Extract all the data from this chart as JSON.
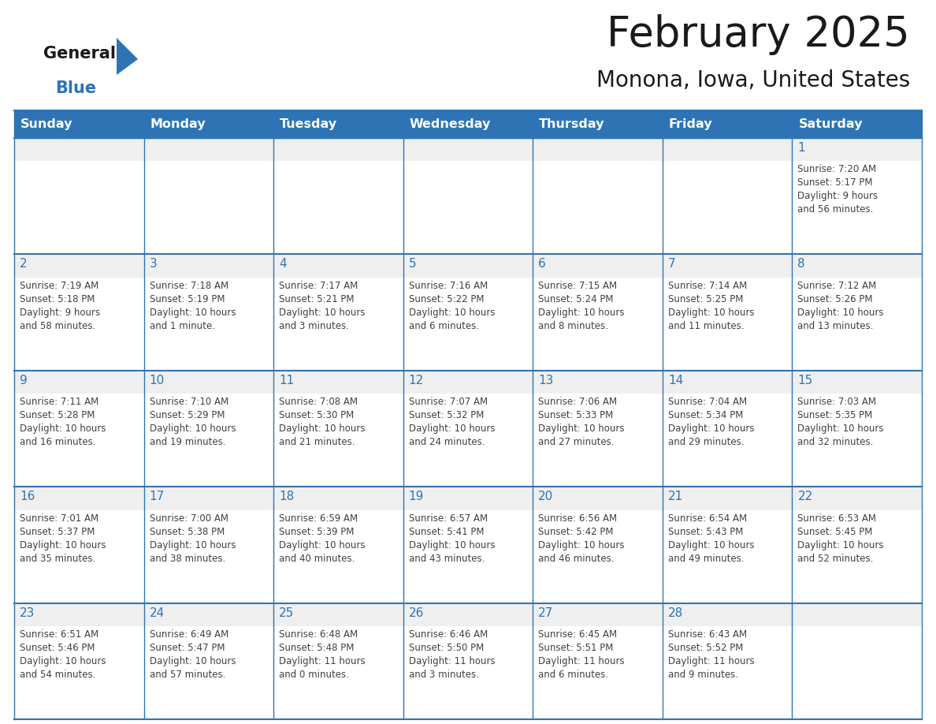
{
  "title": "February 2025",
  "subtitle": "Monona, Iowa, United States",
  "header_bg": "#2E74B5",
  "header_text_color": "#FFFFFF",
  "days_of_week": [
    "Sunday",
    "Monday",
    "Tuesday",
    "Wednesday",
    "Thursday",
    "Friday",
    "Saturday"
  ],
  "cell_top_bg": "#EFEFEF",
  "cell_body_bg": "#FFFFFF",
  "cell_border_color": "#2E74B5",
  "day_number_color": "#2E74B5",
  "info_text_color": "#404040",
  "logo_general_color": "#1a1a1a",
  "logo_blue_color": "#2E74B5",
  "logo_triangle_color": "#2E74B5",
  "title_color": "#1a1a1a",
  "calendar_data": [
    [
      null,
      null,
      null,
      null,
      null,
      null,
      {
        "day": 1,
        "sunrise": "7:20 AM",
        "sunset": "5:17 PM",
        "daylight": "9 hours\nand 56 minutes."
      }
    ],
    [
      {
        "day": 2,
        "sunrise": "7:19 AM",
        "sunset": "5:18 PM",
        "daylight": "9 hours\nand 58 minutes."
      },
      {
        "day": 3,
        "sunrise": "7:18 AM",
        "sunset": "5:19 PM",
        "daylight": "10 hours\nand 1 minute."
      },
      {
        "day": 4,
        "sunrise": "7:17 AM",
        "sunset": "5:21 PM",
        "daylight": "10 hours\nand 3 minutes."
      },
      {
        "day": 5,
        "sunrise": "7:16 AM",
        "sunset": "5:22 PM",
        "daylight": "10 hours\nand 6 minutes."
      },
      {
        "day": 6,
        "sunrise": "7:15 AM",
        "sunset": "5:24 PM",
        "daylight": "10 hours\nand 8 minutes."
      },
      {
        "day": 7,
        "sunrise": "7:14 AM",
        "sunset": "5:25 PM",
        "daylight": "10 hours\nand 11 minutes."
      },
      {
        "day": 8,
        "sunrise": "7:12 AM",
        "sunset": "5:26 PM",
        "daylight": "10 hours\nand 13 minutes."
      }
    ],
    [
      {
        "day": 9,
        "sunrise": "7:11 AM",
        "sunset": "5:28 PM",
        "daylight": "10 hours\nand 16 minutes."
      },
      {
        "day": 10,
        "sunrise": "7:10 AM",
        "sunset": "5:29 PM",
        "daylight": "10 hours\nand 19 minutes."
      },
      {
        "day": 11,
        "sunrise": "7:08 AM",
        "sunset": "5:30 PM",
        "daylight": "10 hours\nand 21 minutes."
      },
      {
        "day": 12,
        "sunrise": "7:07 AM",
        "sunset": "5:32 PM",
        "daylight": "10 hours\nand 24 minutes."
      },
      {
        "day": 13,
        "sunrise": "7:06 AM",
        "sunset": "5:33 PM",
        "daylight": "10 hours\nand 27 minutes."
      },
      {
        "day": 14,
        "sunrise": "7:04 AM",
        "sunset": "5:34 PM",
        "daylight": "10 hours\nand 29 minutes."
      },
      {
        "day": 15,
        "sunrise": "7:03 AM",
        "sunset": "5:35 PM",
        "daylight": "10 hours\nand 32 minutes."
      }
    ],
    [
      {
        "day": 16,
        "sunrise": "7:01 AM",
        "sunset": "5:37 PM",
        "daylight": "10 hours\nand 35 minutes."
      },
      {
        "day": 17,
        "sunrise": "7:00 AM",
        "sunset": "5:38 PM",
        "daylight": "10 hours\nand 38 minutes."
      },
      {
        "day": 18,
        "sunrise": "6:59 AM",
        "sunset": "5:39 PM",
        "daylight": "10 hours\nand 40 minutes."
      },
      {
        "day": 19,
        "sunrise": "6:57 AM",
        "sunset": "5:41 PM",
        "daylight": "10 hours\nand 43 minutes."
      },
      {
        "day": 20,
        "sunrise": "6:56 AM",
        "sunset": "5:42 PM",
        "daylight": "10 hours\nand 46 minutes."
      },
      {
        "day": 21,
        "sunrise": "6:54 AM",
        "sunset": "5:43 PM",
        "daylight": "10 hours\nand 49 minutes."
      },
      {
        "day": 22,
        "sunrise": "6:53 AM",
        "sunset": "5:45 PM",
        "daylight": "10 hours\nand 52 minutes."
      }
    ],
    [
      {
        "day": 23,
        "sunrise": "6:51 AM",
        "sunset": "5:46 PM",
        "daylight": "10 hours\nand 54 minutes."
      },
      {
        "day": 24,
        "sunrise": "6:49 AM",
        "sunset": "5:47 PM",
        "daylight": "10 hours\nand 57 minutes."
      },
      {
        "day": 25,
        "sunrise": "6:48 AM",
        "sunset": "5:48 PM",
        "daylight": "11 hours\nand 0 minutes."
      },
      {
        "day": 26,
        "sunrise": "6:46 AM",
        "sunset": "5:50 PM",
        "daylight": "11 hours\nand 3 minutes."
      },
      {
        "day": 27,
        "sunrise": "6:45 AM",
        "sunset": "5:51 PM",
        "daylight": "11 hours\nand 6 minutes."
      },
      {
        "day": 28,
        "sunrise": "6:43 AM",
        "sunset": "5:52 PM",
        "daylight": "11 hours\nand 9 minutes."
      },
      null
    ]
  ]
}
